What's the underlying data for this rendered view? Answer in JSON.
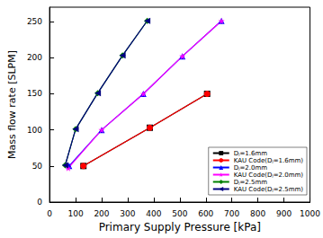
{
  "chart_data": {
    "type": "line",
    "x_label": "Primary Supply Pressure [kPa]",
    "y_label": "Mass flow rate [SLPM]",
    "xlim": [
      0,
      1000
    ],
    "xticks": [
      0,
      100,
      200,
      300,
      400,
      500,
      600,
      700,
      800,
      900,
      1000
    ],
    "ylim": [
      0,
      270
    ],
    "yticks": [
      0,
      50,
      100,
      150,
      200,
      250
    ],
    "grid": false,
    "legend": "lower right",
    "series": [
      {
        "name": "Dⱼ=1.6mm",
        "color": "#000000",
        "marker": "square",
        "x": [
          130,
          385,
          605
        ],
        "values": [
          50,
          103,
          150
        ]
      },
      {
        "name": "KAU Code(Dⱼ=1.6mm)",
        "color": "#ff0000",
        "marker": "circle",
        "x": [
          130,
          385,
          605
        ],
        "values": [
          50,
          103,
          150
        ]
      },
      {
        "name": "Dⱼ=2.0mm",
        "color": "#0000ff",
        "marker": "triangle",
        "x": [
          75,
          200,
          360,
          510,
          660
        ],
        "values": [
          50,
          100,
          150,
          202,
          251
        ]
      },
      {
        "name": "KAU Code(Dⱼ=2.0mm)",
        "color": "#ff00ff",
        "marker": "star",
        "x": [
          72,
          200,
          360,
          510,
          660
        ],
        "values": [
          47,
          100,
          150,
          202,
          251
        ]
      },
      {
        "name": "Dⱼ=2.5mm",
        "color": "#008000",
        "marker": "diamond",
        "x": [
          60,
          100,
          185,
          280,
          375
        ],
        "values": [
          51,
          101,
          151,
          203,
          251
        ]
      },
      {
        "name": "KAU Code(Dⱼ=2.5mm)",
        "color": "#000080",
        "marker": "triangle_left",
        "x": [
          60,
          100,
          185,
          280,
          375
        ],
        "values": [
          51,
          101,
          151,
          203,
          251
        ]
      }
    ]
  }
}
